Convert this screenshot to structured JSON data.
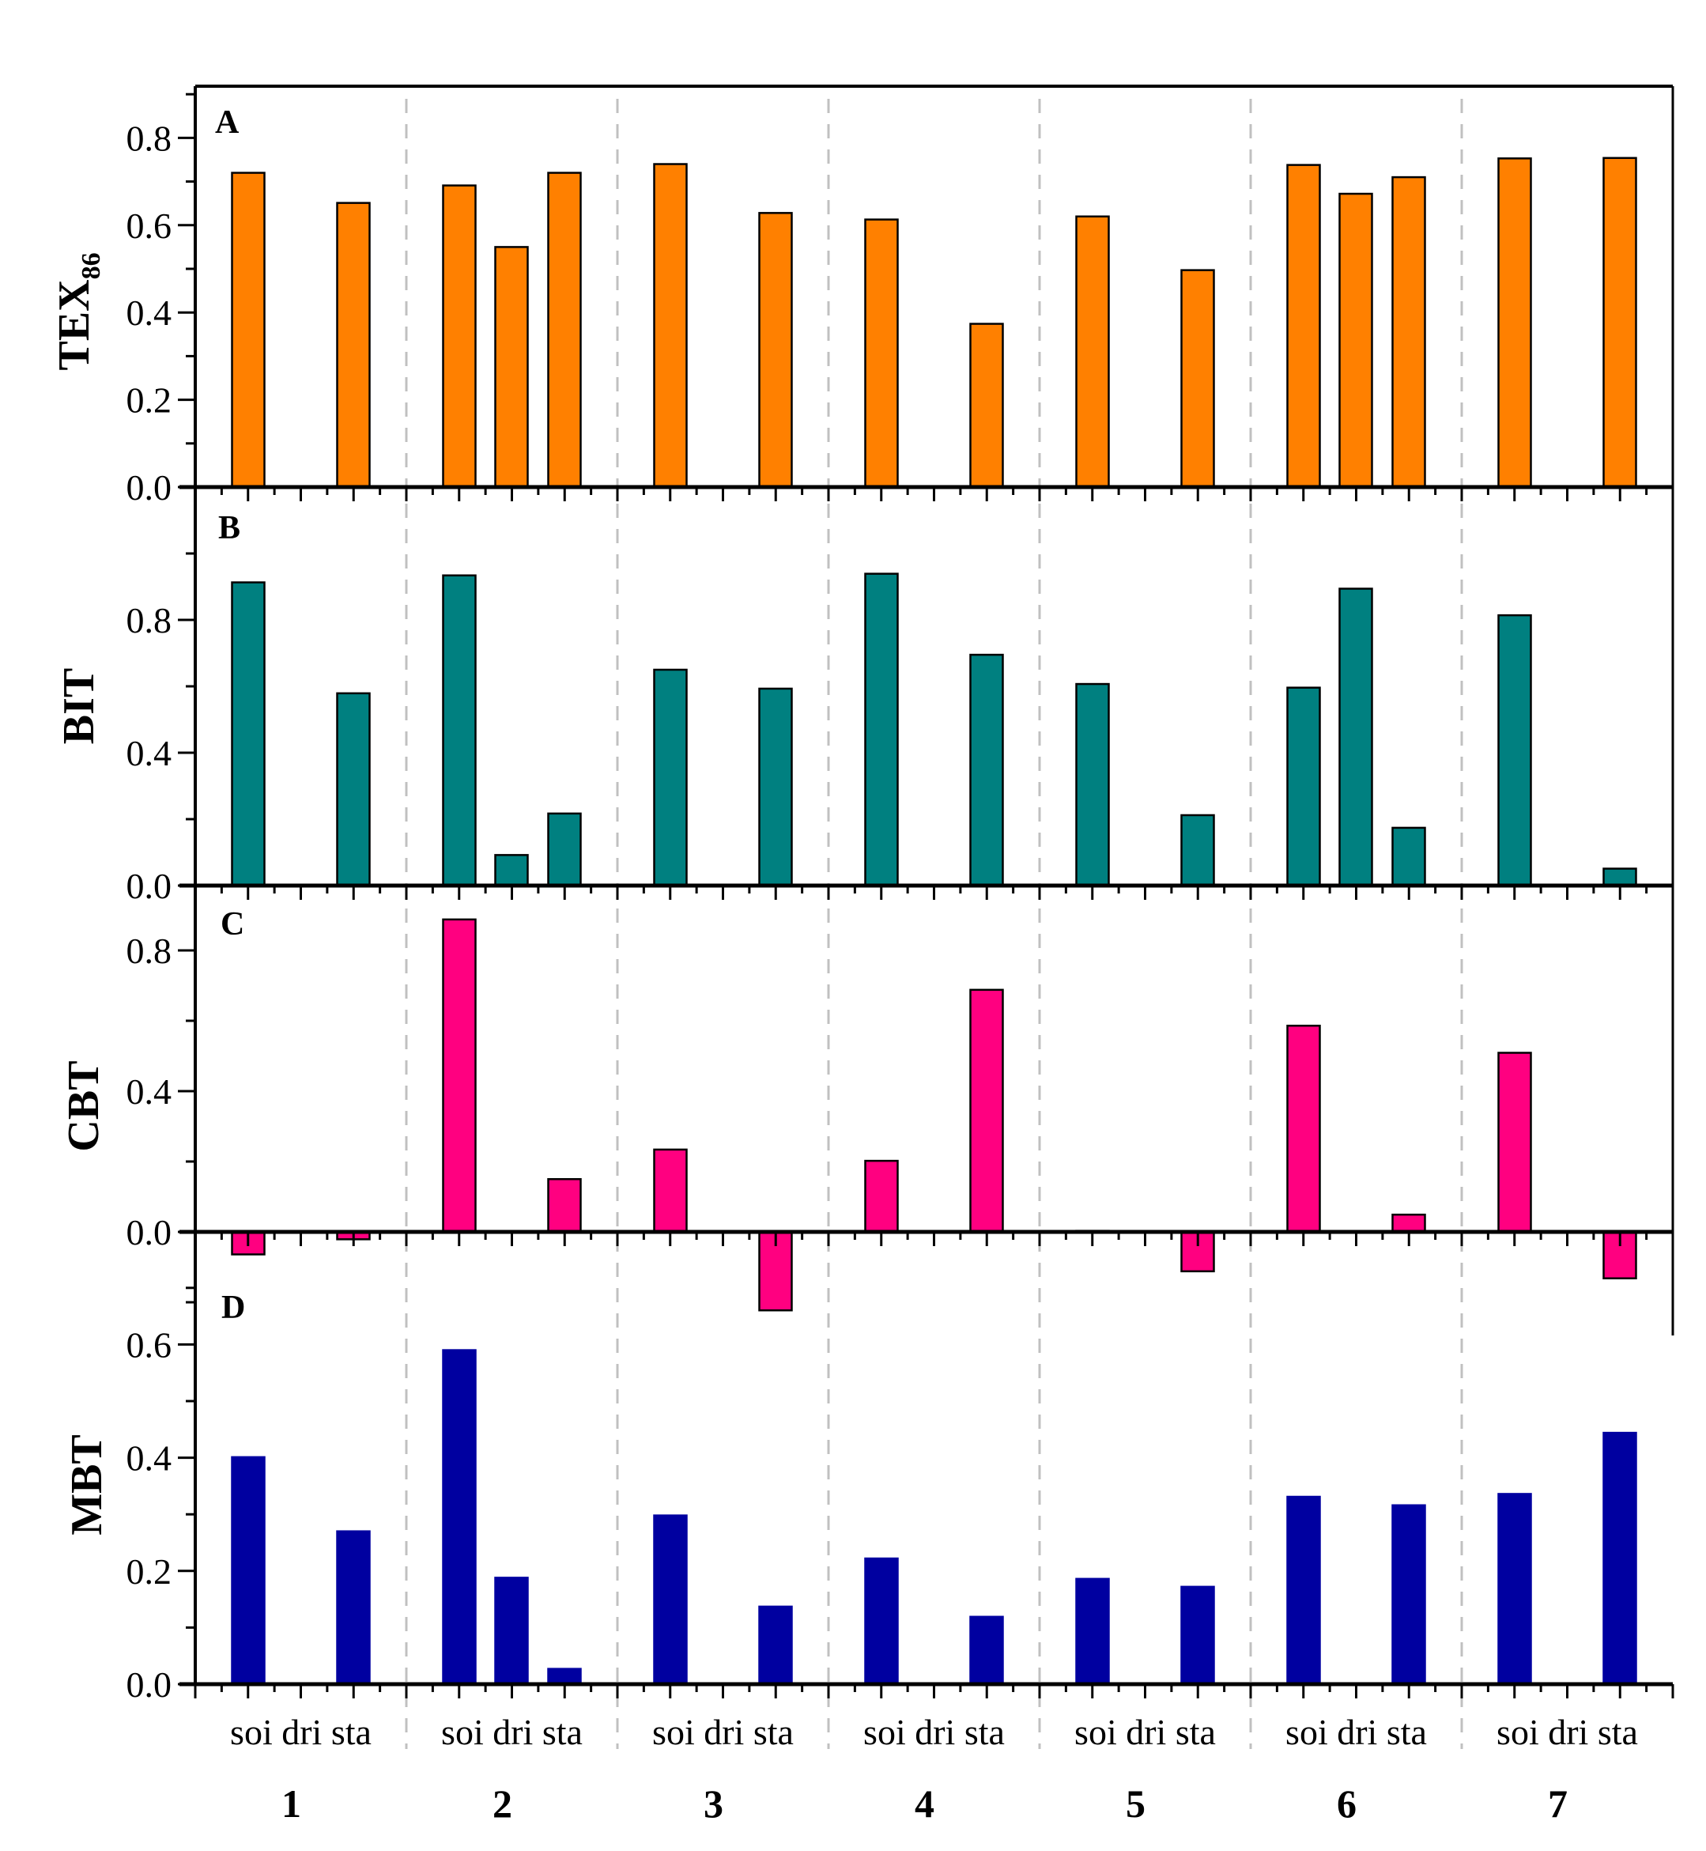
{
  "chart_data": [
    {
      "panel": "A",
      "type": "bar",
      "ylabel": "TEX86",
      "ylabel_main": "TEX",
      "ylabel_sub": "86",
      "ylim": [
        0,
        0.918
      ],
      "ytick_labels": [
        "0.0",
        "0.2",
        "0.4",
        "0.6",
        "0.8"
      ],
      "ytick_values": [
        0,
        0.2,
        0.4,
        0.6,
        0.8
      ],
      "yminor_step": 0.1,
      "color": "#FF8000",
      "stroke": "#000000",
      "groups": [
        "1",
        "2",
        "3",
        "4",
        "5",
        "6",
        "7"
      ],
      "categories": [
        "soi",
        "dri",
        "sta"
      ],
      "values": [
        [
          0.72,
          null,
          0.651
        ],
        [
          0.691,
          0.55,
          0.72
        ],
        [
          0.74,
          null,
          0.628
        ],
        [
          0.613,
          null,
          0.374
        ],
        [
          0.62,
          null,
          0.497
        ],
        [
          0.738,
          0.672,
          0.71
        ],
        [
          0.753,
          null,
          0.754
        ]
      ]
    },
    {
      "panel": "B",
      "type": "bar",
      "ylabel": "BIT",
      "ylim": [
        0,
        1.2
      ],
      "ytick_labels": [
        "0.0",
        "0.4",
        "0.8"
      ],
      "ytick_values": [
        0,
        0.4,
        0.8
      ],
      "yminor_step": 0.2,
      "color": "#008080",
      "stroke": "#000000",
      "groups": [
        "1",
        "2",
        "3",
        "4",
        "5",
        "6",
        "7"
      ],
      "categories": [
        "soi",
        "dri",
        "sta"
      ],
      "values": [
        [
          0.913,
          null,
          0.579
        ],
        [
          0.934,
          0.092,
          0.217
        ],
        [
          0.65,
          null,
          0.593
        ],
        [
          0.939,
          null,
          0.695
        ],
        [
          0.607,
          null,
          0.212
        ],
        [
          0.596,
          0.894,
          0.174
        ],
        [
          0.814,
          null,
          0.051
        ]
      ]
    },
    {
      "panel": "C",
      "type": "bar",
      "ylabel": "CBT",
      "ylim": [
        -0.25,
        0.98
      ],
      "ytick_labels": [
        "0.0",
        "0.4",
        "0.8"
      ],
      "ytick_values": [
        0,
        0.4,
        0.8
      ],
      "yminor_step": 0.2,
      "color": "#FF0080",
      "stroke": "#000000",
      "groups": [
        "1",
        "2",
        "3",
        "4",
        "5",
        "6",
        "7"
      ],
      "categories": [
        "soi",
        "dri",
        "sta"
      ],
      "values": [
        [
          -0.064,
          null,
          -0.021
        ],
        [
          0.888,
          null,
          0.15
        ],
        [
          0.234,
          null,
          -0.223
        ],
        [
          0.202,
          null,
          0.688
        ],
        [
          0.003,
          null,
          -0.112
        ],
        [
          0.586,
          null,
          0.049
        ],
        [
          0.509,
          null,
          -0.132
        ]
      ]
    },
    {
      "panel": "D",
      "type": "bar",
      "ylabel": "MBT",
      "ylim": [
        0,
        0.798
      ],
      "ytick_labels": [
        "0.0",
        "0.2",
        "0.4",
        "0.6"
      ],
      "ytick_values": [
        0,
        0.2,
        0.4,
        0.6
      ],
      "yminor_step": 0.1,
      "color": "#0000A0",
      "stroke": "#0000A0",
      "groups": [
        "1",
        "2",
        "3",
        "4",
        "5",
        "6",
        "7"
      ],
      "categories": [
        "soi",
        "dri",
        "sta"
      ],
      "values": [
        [
          0.401,
          null,
          0.27
        ],
        [
          0.59,
          0.188,
          0.027
        ],
        [
          0.298,
          null,
          0.137
        ],
        [
          0.222,
          null,
          0.119
        ],
        [
          0.186,
          null,
          0.172
        ],
        [
          0.331,
          null,
          0.316
        ],
        [
          0.336,
          null,
          0.444
        ]
      ]
    }
  ],
  "x_axis": {
    "category_label_text": "soi dri sta",
    "categories": [
      "soi",
      "dri",
      "sta"
    ],
    "groups": [
      "1",
      "2",
      "3",
      "4",
      "5",
      "6",
      "7"
    ]
  },
  "style": {
    "separator_color": "#C0C0C0",
    "axis_color": "#000000"
  }
}
